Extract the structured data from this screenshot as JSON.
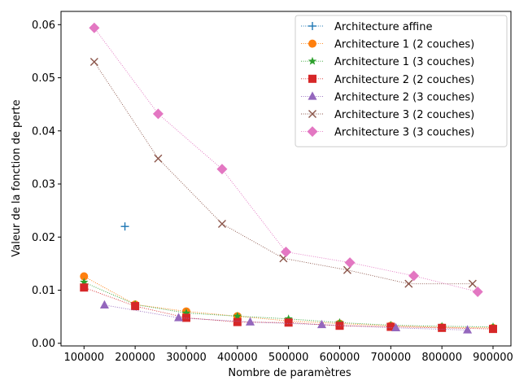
{
  "chart_data": {
    "type": "line",
    "title": "",
    "xlabel": "Nombre de paramètres",
    "ylabel": "Valeur de la fonction de perte",
    "xlim": [
      55000,
      935000
    ],
    "ylim": [
      -0.0005,
      0.0625
    ],
    "x_ticks": [
      100000,
      200000,
      300000,
      400000,
      500000,
      600000,
      700000,
      800000,
      900000
    ],
    "x_tick_labels": [
      "100000",
      "200000",
      "300000",
      "400000",
      "500000",
      "600000",
      "700000",
      "800000",
      "900000"
    ],
    "y_ticks": [
      0,
      0.01,
      0.02,
      0.03,
      0.04,
      0.05,
      0.06
    ],
    "y_tick_labels": [
      "0.00",
      "0.01",
      "0.02",
      "0.03",
      "0.04",
      "0.05",
      "0.06"
    ],
    "grid": false,
    "legend_position": "top-right",
    "series": [
      {
        "name": "Architecture affine",
        "marker": "plus",
        "color": "#1f77b4",
        "x": [
          180000
        ],
        "y": [
          0.022
        ]
      },
      {
        "name": "Architecture 1 (2 couches)",
        "marker": "circle",
        "color": "#ff7f0e",
        "x": [
          100000,
          200000,
          300000,
          400000,
          500000,
          600000,
          700000,
          800000,
          900000
        ],
        "y": [
          0.0126,
          0.0073,
          0.006,
          0.0051,
          0.0042,
          0.0037,
          0.0033,
          0.003,
          0.0029
        ]
      },
      {
        "name": "Architecture 1 (3 couches)",
        "marker": "star",
        "color": "#2ca02c",
        "x": [
          100000,
          200000,
          300000,
          400000,
          500000,
          600000,
          700000,
          800000,
          900000
        ],
        "y": [
          0.0115,
          0.0073,
          0.0057,
          0.0051,
          0.0046,
          0.0039,
          0.0034,
          0.0032,
          0.0031
        ]
      },
      {
        "name": "Architecture 2 (2 couches)",
        "marker": "square",
        "color": "#d62728",
        "x": [
          100000,
          200000,
          300000,
          400000,
          500000,
          600000,
          700000,
          800000,
          900000
        ],
        "y": [
          0.0105,
          0.007,
          0.0048,
          0.004,
          0.0039,
          0.0033,
          0.0031,
          0.0029,
          0.0027
        ]
      },
      {
        "name": "Architecture 2 (3 couches)",
        "marker": "triangle",
        "color": "#9467bd",
        "x": [
          140000,
          285000,
          425000,
          565000,
          710000,
          850000
        ],
        "y": [
          0.0072,
          0.0048,
          0.004,
          0.0035,
          0.0029,
          0.0025
        ]
      },
      {
        "name": "Architecture 3 (2 couches)",
        "marker": "x",
        "color": "#8c564b",
        "x": [
          120000,
          245000,
          370000,
          490000,
          615000,
          735000,
          860000
        ],
        "y": [
          0.053,
          0.0348,
          0.0225,
          0.016,
          0.0138,
          0.0112,
          0.0112
        ]
      },
      {
        "name": "Architecture 3 (3 couches)",
        "marker": "diamond",
        "color": "#e377c2",
        "x": [
          120000,
          245000,
          370000,
          495000,
          620000,
          745000,
          870000
        ],
        "y": [
          0.0594,
          0.0432,
          0.0328,
          0.0172,
          0.0152,
          0.0127,
          0.0097
        ]
      }
    ]
  }
}
